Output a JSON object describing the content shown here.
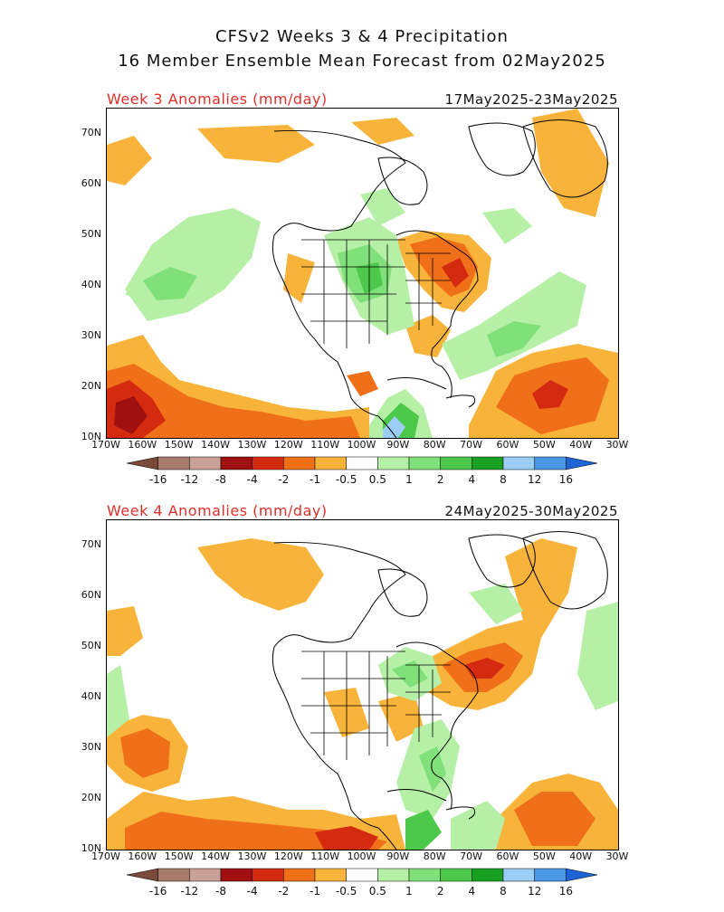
{
  "header": {
    "title_line1": "CFSv2 Weeks 3 & 4 Precipitation",
    "title_line2": "16 Member Ensemble Mean Forecast from 02May2025"
  },
  "panels": [
    {
      "label": "Week 3 Anomalies (mm/day)",
      "dates": "17May2025-23May2025"
    },
    {
      "label": "Week 4 Anomalies (mm/day)",
      "dates": "24May2025-30May2025"
    }
  ],
  "axes": {
    "lat_labels": [
      "70N",
      "60N",
      "50N",
      "40N",
      "30N",
      "20N",
      "10N"
    ],
    "lon_labels": [
      "170W",
      "160W",
      "150W",
      "140W",
      "130W",
      "120W",
      "110W",
      "100W",
      "90W",
      "80W",
      "70W",
      "60W",
      "50W",
      "40W",
      "30W"
    ]
  },
  "colorbar": {
    "labels": [
      "-16",
      "-12",
      "-8",
      "-4",
      "-2",
      "-1",
      "-0.5",
      "0.5",
      "1",
      "2",
      "4",
      "8",
      "12",
      "16"
    ],
    "colors": [
      "#7a4a3a",
      "#a87a6a",
      "#c8a096",
      "#a01010",
      "#d42a10",
      "#f0701a",
      "#f8b43a",
      "#ffffff",
      "#b6f0a6",
      "#80e07a",
      "#4cc84a",
      "#18a020",
      "#9ccdf4",
      "#4a98e6",
      "#1e64d4"
    ]
  },
  "map_colors": {
    "dry_light": "#f8b43a",
    "dry_mid": "#f0701a",
    "dry_strong": "#d42a10",
    "dry_extreme": "#a01010",
    "wet_light": "#b6f0a6",
    "wet_mid": "#80e07a",
    "wet_strong": "#4cc84a",
    "wet_extreme": "#18a020",
    "wet_blue": "#9ccdf4"
  }
}
